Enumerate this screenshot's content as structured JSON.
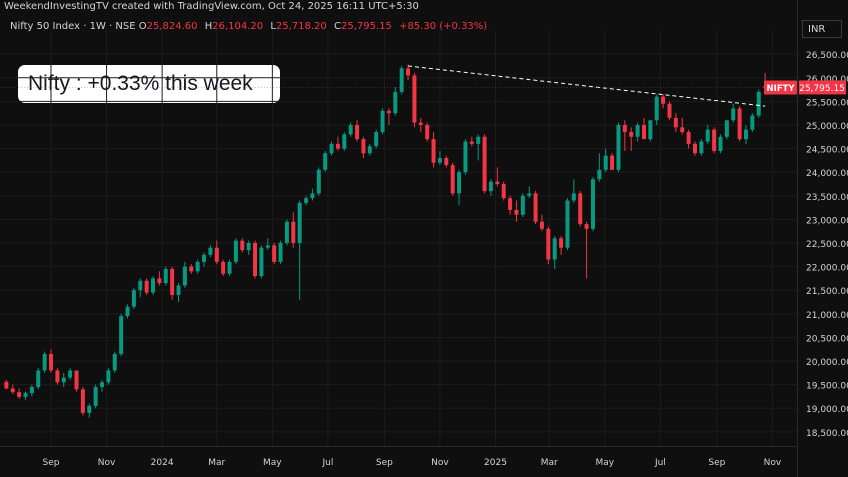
{
  "header": {
    "credit": "WeekendInvestingTV created with TradingView.com, Oct 24, 2025 16:11 UTC+5:30",
    "symbol_line": "Nifty 50 Index · 1W · NSE",
    "ohlc": [
      {
        "label": "O",
        "value": "25,824.60"
      },
      {
        "label": "H",
        "value": "26,104.20"
      },
      {
        "label": "L",
        "value": "25,718.20"
      },
      {
        "label": "C",
        "value": "25,795.15"
      }
    ],
    "change": "+85.30 (+0.33%)"
  },
  "currency_button": "INR",
  "annotation": {
    "text": "Nifty : +0.33% this week"
  },
  "price_tag": {
    "symbol": "NIFTY",
    "price": "25,795.15",
    "value": 25795.15,
    "color": "#f23645"
  },
  "colors": {
    "up": "#089981",
    "down": "#f23645",
    "background": "#0f0f0f",
    "grid": "#1c1c1c",
    "text": "#d1d4dc",
    "trendline": "#ffffff"
  },
  "chart_data": {
    "type": "candlestick",
    "interval": "1W",
    "ylim": [
      18200,
      26800
    ],
    "y_ticks": [
      {
        "value": 18500,
        "label": "18,500.00"
      },
      {
        "value": 19000,
        "label": "19,000.00"
      },
      {
        "value": 19500,
        "label": "19,500.00"
      },
      {
        "value": 20000,
        "label": "20,000.00"
      },
      {
        "value": 20500,
        "label": "20,500.00"
      },
      {
        "value": 21000,
        "label": "21,000.00"
      },
      {
        "value": 21500,
        "label": "21,500.00"
      },
      {
        "value": 22000,
        "label": "22,000.00"
      },
      {
        "value": 22500,
        "label": "22,500.00"
      },
      {
        "value": 23000,
        "label": "23,000.00"
      },
      {
        "value": 23500,
        "label": "23,500.00"
      },
      {
        "value": 24000,
        "label": "24,000.00"
      },
      {
        "value": 24500,
        "label": "24,500.00"
      },
      {
        "value": 25000,
        "label": "25,000.00"
      },
      {
        "value": 25500,
        "label": "25,500.00"
      },
      {
        "value": 26000,
        "label": "26,000.00"
      },
      {
        "value": 26500,
        "label": "26,500.00"
      }
    ],
    "x_ticks": [
      {
        "label": "Sep",
        "date": "2023-09-01"
      },
      {
        "label": "Nov",
        "date": "2023-11-01"
      },
      {
        "label": "2024",
        "date": "2024-01-01"
      },
      {
        "label": "Mar",
        "date": "2024-03-01"
      },
      {
        "label": "May",
        "date": "2024-05-01"
      },
      {
        "label": "Jul",
        "date": "2024-07-01"
      },
      {
        "label": "Sep",
        "date": "2024-09-01"
      },
      {
        "label": "Nov",
        "date": "2024-11-01"
      },
      {
        "label": "2025",
        "date": "2025-01-01"
      },
      {
        "label": "Mar",
        "date": "2025-03-01"
      },
      {
        "label": "May",
        "date": "2025-05-01"
      },
      {
        "label": "Jul",
        "date": "2025-07-01"
      },
      {
        "label": "Sep",
        "date": "2025-09-01"
      },
      {
        "label": "Nov",
        "date": "2025-11-01"
      }
    ],
    "trendline": {
      "start": {
        "date": "2024-09-27",
        "value": 26250
      },
      "end": {
        "date": "2025-10-24",
        "value": 25400
      },
      "style": "dashed"
    },
    "candles": [
      {
        "date": "2023-07-14",
        "o": 19560,
        "h": 19600,
        "l": 19400,
        "c": 19420
      },
      {
        "date": "2023-07-21",
        "o": 19420,
        "h": 19500,
        "l": 19300,
        "c": 19340
      },
      {
        "date": "2023-07-28",
        "o": 19340,
        "h": 19420,
        "l": 19200,
        "c": 19240
      },
      {
        "date": "2023-08-04",
        "o": 19240,
        "h": 19350,
        "l": 19180,
        "c": 19320
      },
      {
        "date": "2023-08-11",
        "o": 19320,
        "h": 19500,
        "l": 19250,
        "c": 19450
      },
      {
        "date": "2023-08-18",
        "o": 19450,
        "h": 19850,
        "l": 19400,
        "c": 19800
      },
      {
        "date": "2023-08-25",
        "o": 19800,
        "h": 20200,
        "l": 19750,
        "c": 20150
      },
      {
        "date": "2023-09-01",
        "o": 20150,
        "h": 20250,
        "l": 19750,
        "c": 19800
      },
      {
        "date": "2023-09-08",
        "o": 19800,
        "h": 19850,
        "l": 19500,
        "c": 19550
      },
      {
        "date": "2023-09-15",
        "o": 19550,
        "h": 19750,
        "l": 19450,
        "c": 19650
      },
      {
        "date": "2023-09-22",
        "o": 19650,
        "h": 19850,
        "l": 19600,
        "c": 19800
      },
      {
        "date": "2023-09-29",
        "o": 19800,
        "h": 19800,
        "l": 19350,
        "c": 19400
      },
      {
        "date": "2023-10-06",
        "o": 19400,
        "h": 19450,
        "l": 18850,
        "c": 18900
      },
      {
        "date": "2023-10-13",
        "o": 18900,
        "h": 19100,
        "l": 18800,
        "c": 19050
      },
      {
        "date": "2023-10-20",
        "o": 19050,
        "h": 19500,
        "l": 19000,
        "c": 19450
      },
      {
        "date": "2023-10-27",
        "o": 19450,
        "h": 19600,
        "l": 19350,
        "c": 19550
      },
      {
        "date": "2023-11-03",
        "o": 19550,
        "h": 19850,
        "l": 19500,
        "c": 19800
      },
      {
        "date": "2023-11-10",
        "o": 19800,
        "h": 20200,
        "l": 19750,
        "c": 20150
      },
      {
        "date": "2023-11-17",
        "o": 20150,
        "h": 21000,
        "l": 20100,
        "c": 20950
      },
      {
        "date": "2023-11-24",
        "o": 20950,
        "h": 21200,
        "l": 20900,
        "c": 21150
      },
      {
        "date": "2023-12-01",
        "o": 21150,
        "h": 21550,
        "l": 21100,
        "c": 21500
      },
      {
        "date": "2023-12-08",
        "o": 21500,
        "h": 21750,
        "l": 21350,
        "c": 21700
      },
      {
        "date": "2023-12-15",
        "o": 21700,
        "h": 21750,
        "l": 21400,
        "c": 21450
      },
      {
        "date": "2023-12-22",
        "o": 21450,
        "h": 21800,
        "l": 21400,
        "c": 21750
      },
      {
        "date": "2023-12-29",
        "o": 21750,
        "h": 21900,
        "l": 21600,
        "c": 21650
      },
      {
        "date": "2024-01-05",
        "o": 21650,
        "h": 22000,
        "l": 21600,
        "c": 21950
      },
      {
        "date": "2024-01-12",
        "o": 21950,
        "h": 22000,
        "l": 21300,
        "c": 21400
      },
      {
        "date": "2024-01-19",
        "o": 21400,
        "h": 21650,
        "l": 21250,
        "c": 21600
      },
      {
        "date": "2024-01-26",
        "o": 21600,
        "h": 22100,
        "l": 21550,
        "c": 22000
      },
      {
        "date": "2024-02-02",
        "o": 22000,
        "h": 22050,
        "l": 21850,
        "c": 21900
      },
      {
        "date": "2024-02-09",
        "o": 21900,
        "h": 22150,
        "l": 21850,
        "c": 22100
      },
      {
        "date": "2024-02-16",
        "o": 22100,
        "h": 22300,
        "l": 22000,
        "c": 22250
      },
      {
        "date": "2024-02-23",
        "o": 22250,
        "h": 22450,
        "l": 22200,
        "c": 22400
      },
      {
        "date": "2024-03-01",
        "o": 22400,
        "h": 22550,
        "l": 22050,
        "c": 22100
      },
      {
        "date": "2024-03-08",
        "o": 22100,
        "h": 22150,
        "l": 21800,
        "c": 21850
      },
      {
        "date": "2024-03-15",
        "o": 21850,
        "h": 22150,
        "l": 21800,
        "c": 22100
      },
      {
        "date": "2024-03-22",
        "o": 22100,
        "h": 22600,
        "l": 22050,
        "c": 22550
      },
      {
        "date": "2024-03-29",
        "o": 22550,
        "h": 22600,
        "l": 22300,
        "c": 22350
      },
      {
        "date": "2024-04-05",
        "o": 22350,
        "h": 22550,
        "l": 22250,
        "c": 22500
      },
      {
        "date": "2024-04-12",
        "o": 22500,
        "h": 22550,
        "l": 21750,
        "c": 21800
      },
      {
        "date": "2024-04-19",
        "o": 21800,
        "h": 22450,
        "l": 21750,
        "c": 22400
      },
      {
        "date": "2024-04-26",
        "o": 22400,
        "h": 22600,
        "l": 22350,
        "c": 22450
      },
      {
        "date": "2024-05-03",
        "o": 22450,
        "h": 22500,
        "l": 22050,
        "c": 22100
      },
      {
        "date": "2024-05-10",
        "o": 22100,
        "h": 22550,
        "l": 22050,
        "c": 22500
      },
      {
        "date": "2024-05-17",
        "o": 22500,
        "h": 23000,
        "l": 22450,
        "c": 22950
      },
      {
        "date": "2024-05-24",
        "o": 22950,
        "h": 23150,
        "l": 22400,
        "c": 22500
      },
      {
        "date": "2024-05-31",
        "o": 22500,
        "h": 23400,
        "l": 21300,
        "c": 23350
      },
      {
        "date": "2024-06-07",
        "o": 23350,
        "h": 23500,
        "l": 23300,
        "c": 23450
      },
      {
        "date": "2024-06-14",
        "o": 23450,
        "h": 23650,
        "l": 23400,
        "c": 23550
      },
      {
        "date": "2024-06-21",
        "o": 23550,
        "h": 24100,
        "l": 23500,
        "c": 24050
      },
      {
        "date": "2024-06-28",
        "o": 24050,
        "h": 24450,
        "l": 24000,
        "c": 24400
      },
      {
        "date": "2024-07-05",
        "o": 24400,
        "h": 24650,
        "l": 24350,
        "c": 24600
      },
      {
        "date": "2024-07-12",
        "o": 24600,
        "h": 24750,
        "l": 24450,
        "c": 24500
      },
      {
        "date": "2024-07-19",
        "o": 24500,
        "h": 24850,
        "l": 24450,
        "c": 24800
      },
      {
        "date": "2024-07-26",
        "o": 24800,
        "h": 25050,
        "l": 24750,
        "c": 25000
      },
      {
        "date": "2024-08-02",
        "o": 25000,
        "h": 25100,
        "l": 24650,
        "c": 24700
      },
      {
        "date": "2024-08-09",
        "o": 24700,
        "h": 24750,
        "l": 24300,
        "c": 24400
      },
      {
        "date": "2024-08-16",
        "o": 24400,
        "h": 24600,
        "l": 24350,
        "c": 24550
      },
      {
        "date": "2024-08-23",
        "o": 24550,
        "h": 24900,
        "l": 24500,
        "c": 24850
      },
      {
        "date": "2024-08-30",
        "o": 24850,
        "h": 25350,
        "l": 24800,
        "c": 25300
      },
      {
        "date": "2024-09-06",
        "o": 25300,
        "h": 25350,
        "l": 25000,
        "c": 25250
      },
      {
        "date": "2024-09-13",
        "o": 25250,
        "h": 25800,
        "l": 25200,
        "c": 25700
      },
      {
        "date": "2024-09-20",
        "o": 25700,
        "h": 26250,
        "l": 25650,
        "c": 26200
      },
      {
        "date": "2024-09-27",
        "o": 26200,
        "h": 26280,
        "l": 25950,
        "c": 26050
      },
      {
        "date": "2024-10-04",
        "o": 26050,
        "h": 26100,
        "l": 24950,
        "c": 25050
      },
      {
        "date": "2024-10-11",
        "o": 25050,
        "h": 25150,
        "l": 24850,
        "c": 25000
      },
      {
        "date": "2024-10-18",
        "o": 25000,
        "h": 25050,
        "l": 24650,
        "c": 24700
      },
      {
        "date": "2024-10-25",
        "o": 24700,
        "h": 24850,
        "l": 24100,
        "c": 24200
      },
      {
        "date": "2024-11-01",
        "o": 24200,
        "h": 24450,
        "l": 24150,
        "c": 24300
      },
      {
        "date": "2024-11-08",
        "o": 24300,
        "h": 24350,
        "l": 24100,
        "c": 24150
      },
      {
        "date": "2024-11-15",
        "o": 24150,
        "h": 24200,
        "l": 23500,
        "c": 23550
      },
      {
        "date": "2024-11-22",
        "o": 23550,
        "h": 24050,
        "l": 23300,
        "c": 24000
      },
      {
        "date": "2024-11-29",
        "o": 24000,
        "h": 24700,
        "l": 23950,
        "c": 24650
      },
      {
        "date": "2024-12-06",
        "o": 24650,
        "h": 24750,
        "l": 24550,
        "c": 24600
      },
      {
        "date": "2024-12-13",
        "o": 24600,
        "h": 24800,
        "l": 24250,
        "c": 24750
      },
      {
        "date": "2024-12-20",
        "o": 24750,
        "h": 24800,
        "l": 23550,
        "c": 23600
      },
      {
        "date": "2024-12-27",
        "o": 23600,
        "h": 23850,
        "l": 23500,
        "c": 23800
      },
      {
        "date": "2025-01-03",
        "o": 23800,
        "h": 24100,
        "l": 23700,
        "c": 23750
      },
      {
        "date": "2025-01-10",
        "o": 23750,
        "h": 23800,
        "l": 23400,
        "c": 23450
      },
      {
        "date": "2025-01-17",
        "o": 23450,
        "h": 23500,
        "l": 23100,
        "c": 23200
      },
      {
        "date": "2025-01-24",
        "o": 23200,
        "h": 23400,
        "l": 22950,
        "c": 23100
      },
      {
        "date": "2025-01-31",
        "o": 23100,
        "h": 23550,
        "l": 23050,
        "c": 23500
      },
      {
        "date": "2025-02-07",
        "o": 23500,
        "h": 23700,
        "l": 23450,
        "c": 23550
      },
      {
        "date": "2025-02-14",
        "o": 23550,
        "h": 23600,
        "l": 22900,
        "c": 22950
      },
      {
        "date": "2025-02-21",
        "o": 22950,
        "h": 23100,
        "l": 22750,
        "c": 22800
      },
      {
        "date": "2025-02-28",
        "o": 22800,
        "h": 22850,
        "l": 22050,
        "c": 22150
      },
      {
        "date": "2025-03-07",
        "o": 22150,
        "h": 22650,
        "l": 21950,
        "c": 22600
      },
      {
        "date": "2025-03-14",
        "o": 22600,
        "h": 22650,
        "l": 22250,
        "c": 22400
      },
      {
        "date": "2025-03-21",
        "o": 22400,
        "h": 23450,
        "l": 22350,
        "c": 23400
      },
      {
        "date": "2025-03-28",
        "o": 23400,
        "h": 23850,
        "l": 23350,
        "c": 23550
      },
      {
        "date": "2025-04-04",
        "o": 23550,
        "h": 23600,
        "l": 22850,
        "c": 22900
      },
      {
        "date": "2025-04-11",
        "o": 22900,
        "h": 22950,
        "l": 21750,
        "c": 22800
      },
      {
        "date": "2025-04-18",
        "o": 22800,
        "h": 23900,
        "l": 22750,
        "c": 23850
      },
      {
        "date": "2025-04-25",
        "o": 23850,
        "h": 24400,
        "l": 23800,
        "c": 24050
      },
      {
        "date": "2025-05-02",
        "o": 24050,
        "h": 24500,
        "l": 24000,
        "c": 24350
      },
      {
        "date": "2025-05-09",
        "o": 24350,
        "h": 24400,
        "l": 24050,
        "c": 24050
      },
      {
        "date": "2025-05-16",
        "o": 24050,
        "h": 25050,
        "l": 24000,
        "c": 25000
      },
      {
        "date": "2025-05-23",
        "o": 25000,
        "h": 25100,
        "l": 24450,
        "c": 24850
      },
      {
        "date": "2025-05-30",
        "o": 24850,
        "h": 24950,
        "l": 24450,
        "c": 24750
      },
      {
        "date": "2025-06-06",
        "o": 24750,
        "h": 25050,
        "l": 24650,
        "c": 25000
      },
      {
        "date": "2025-06-13",
        "o": 25000,
        "h": 25150,
        "l": 24700,
        "c": 24700
      },
      {
        "date": "2025-06-20",
        "o": 24700,
        "h": 25050,
        "l": 24650,
        "c": 25100
      },
      {
        "date": "2025-06-27",
        "o": 25100,
        "h": 25650,
        "l": 25000,
        "c": 25600
      },
      {
        "date": "2025-07-04",
        "o": 25600,
        "h": 25650,
        "l": 25350,
        "c": 25450
      },
      {
        "date": "2025-07-11",
        "o": 25450,
        "h": 25500,
        "l": 25100,
        "c": 25150
      },
      {
        "date": "2025-07-18",
        "o": 25150,
        "h": 25250,
        "l": 24850,
        "c": 24950
      },
      {
        "date": "2025-07-25",
        "o": 24950,
        "h": 25150,
        "l": 24800,
        "c": 24850
      },
      {
        "date": "2025-08-01",
        "o": 24850,
        "h": 24900,
        "l": 24500,
        "c": 24600
      },
      {
        "date": "2025-08-08",
        "o": 24600,
        "h": 24650,
        "l": 24350,
        "c": 24400
      },
      {
        "date": "2025-08-15",
        "o": 24400,
        "h": 24700,
        "l": 24350,
        "c": 24650
      },
      {
        "date": "2025-08-22",
        "o": 24650,
        "h": 25000,
        "l": 24600,
        "c": 24900
      },
      {
        "date": "2025-08-29",
        "o": 24900,
        "h": 24950,
        "l": 24400,
        "c": 24450
      },
      {
        "date": "2025-09-05",
        "o": 24450,
        "h": 24800,
        "l": 24400,
        "c": 24750
      },
      {
        "date": "2025-09-12",
        "o": 24750,
        "h": 25100,
        "l": 24700,
        "c": 25100
      },
      {
        "date": "2025-09-19",
        "o": 25100,
        "h": 25450,
        "l": 25050,
        "c": 25350
      },
      {
        "date": "2025-09-26",
        "o": 25350,
        "h": 25400,
        "l": 24650,
        "c": 24700
      },
      {
        "date": "2025-10-03",
        "o": 24700,
        "h": 25000,
        "l": 24600,
        "c": 24900
      },
      {
        "date": "2025-10-10",
        "o": 24900,
        "h": 25250,
        "l": 24850,
        "c": 25200
      },
      {
        "date": "2025-10-17",
        "o": 25200,
        "h": 25750,
        "l": 25150,
        "c": 25700
      },
      {
        "date": "2025-10-24",
        "o": 25824.6,
        "h": 26104.2,
        "l": 25718.2,
        "c": 25795.15
      }
    ]
  }
}
